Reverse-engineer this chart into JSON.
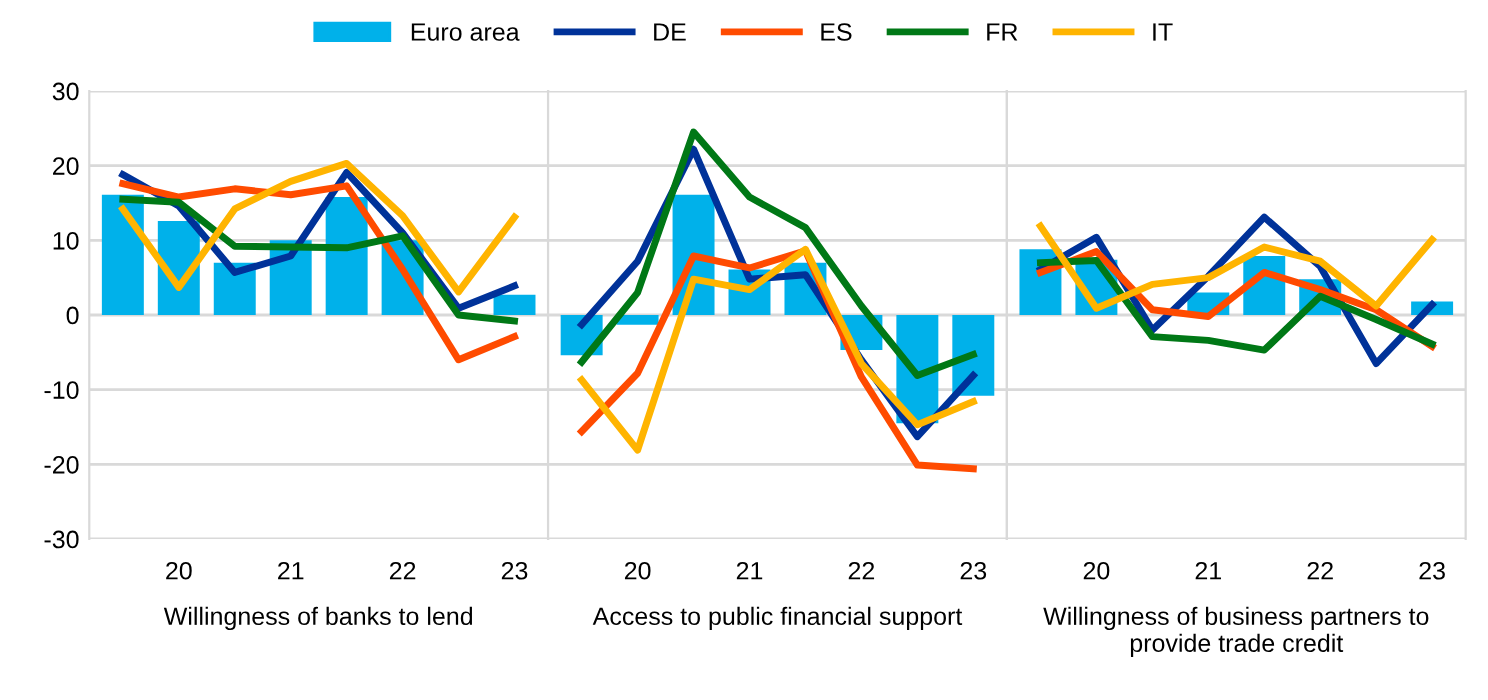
{
  "chart_data": [
    {
      "type": "bar",
      "xlabel": "Willingness of banks to lend",
      "categories": [
        null,
        "20",
        null,
        "21",
        null,
        "22",
        null,
        "23"
      ],
      "ylim": [
        -30,
        30
      ],
      "yticks": [
        -30,
        -20,
        -10,
        0,
        10,
        20,
        30
      ],
      "grid": "y",
      "legend": "top",
      "series": [
        {
          "name": "Euro area",
          "color": "#00b1ea",
          "values": [
            16.1,
            12.6,
            7.0,
            10.0,
            15.8,
            10.0,
            null,
            2.7
          ]
        },
        {
          "name": "DE",
          "type": "line",
          "color": "#003299",
          "values": [
            18.8,
            14.6,
            5.7,
            7.9,
            19.1,
            11.0,
            0.9,
            3.9
          ]
        },
        {
          "name": "ES",
          "type": "line",
          "color": "#ff4b00",
          "values": [
            17.6,
            15.8,
            16.9,
            16.1,
            17.3,
            6.1,
            -6.0,
            -2.9
          ]
        },
        {
          "name": "FR",
          "type": "line",
          "color": "#007816",
          "values": [
            15.5,
            15.1,
            9.2,
            9.1,
            9.0,
            10.6,
            0.0,
            -0.8
          ]
        },
        {
          "name": "IT",
          "type": "line",
          "color": "#ffb400",
          "values": [
            14.2,
            3.7,
            14.2,
            17.9,
            20.3,
            13.3,
            3.1,
            13.1
          ]
        }
      ]
    },
    {
      "type": "bar",
      "xlabel": "Access to public financial support",
      "categories": [
        null,
        "20",
        null,
        "21",
        null,
        "22",
        null,
        "23"
      ],
      "ylim": [
        -30,
        30
      ],
      "yticks": [
        -30,
        -20,
        -10,
        0,
        10,
        20,
        30
      ],
      "grid": "y",
      "tick_labels": "x",
      "series": [
        {
          "color": "#00b1ea",
          "values": [
            -5.4,
            -1.3,
            16.1,
            6.1,
            7.0,
            -4.7,
            -14.5,
            -10.8
          ]
        },
        {
          "type": "line",
          "color": "#003299",
          "values": [
            -1.3,
            7.2,
            22.2,
            4.8,
            5.4,
            -6.0,
            -16.3,
            -8.1
          ]
        },
        {
          "type": "line",
          "color": "#ff4b00",
          "values": [
            -15.6,
            -7.8,
            7.9,
            6.3,
            8.6,
            -8.3,
            -20.1,
            -20.6
          ]
        },
        {
          "type": "line",
          "color": "#007816",
          "values": [
            -6.3,
            3.0,
            24.5,
            15.8,
            11.7,
            1.2,
            -8.1,
            -5.3
          ]
        },
        {
          "type": "line",
          "color": "#ffb400",
          "values": [
            -8.7,
            -18.1,
            4.8,
            3.4,
            8.8,
            -6.5,
            -14.7,
            -11.6
          ]
        }
      ]
    },
    {
      "type": "bar",
      "xlabel": "Willingness of business partners to\nprovide trade credit",
      "categories": [
        null,
        "20",
        null,
        "21",
        null,
        "22",
        null,
        "23"
      ],
      "ylim": [
        -30,
        30
      ],
      "yticks": [
        -30,
        -20,
        -10,
        0,
        10,
        20,
        30
      ],
      "grid": "y",
      "tick_labels": "x",
      "series": [
        {
          "color": "#00b1ea",
          "values": [
            8.8,
            7.4,
            null,
            3.0,
            7.9,
            4.8,
            null,
            1.8
          ]
        },
        {
          "type": "line",
          "color": "#003299",
          "values": [
            6.1,
            10.4,
            -2.0,
            5.2,
            13.1,
            6.5,
            -6.5,
            1.4
          ]
        },
        {
          "type": "line",
          "color": "#ff4b00",
          "values": [
            5.7,
            8.5,
            0.7,
            -0.2,
            5.7,
            3.4,
            0.7,
            -4.2
          ]
        },
        {
          "type": "line",
          "color": "#007816",
          "values": [
            7.0,
            7.3,
            -2.9,
            -3.4,
            -4.7,
            2.5,
            -0.6,
            -3.9
          ]
        },
        {
          "type": "line",
          "color": "#ffb400",
          "values": [
            11.9,
            0.9,
            4.1,
            5.0,
            9.1,
            7.2,
            1.2,
            10.1
          ]
        }
      ]
    }
  ]
}
